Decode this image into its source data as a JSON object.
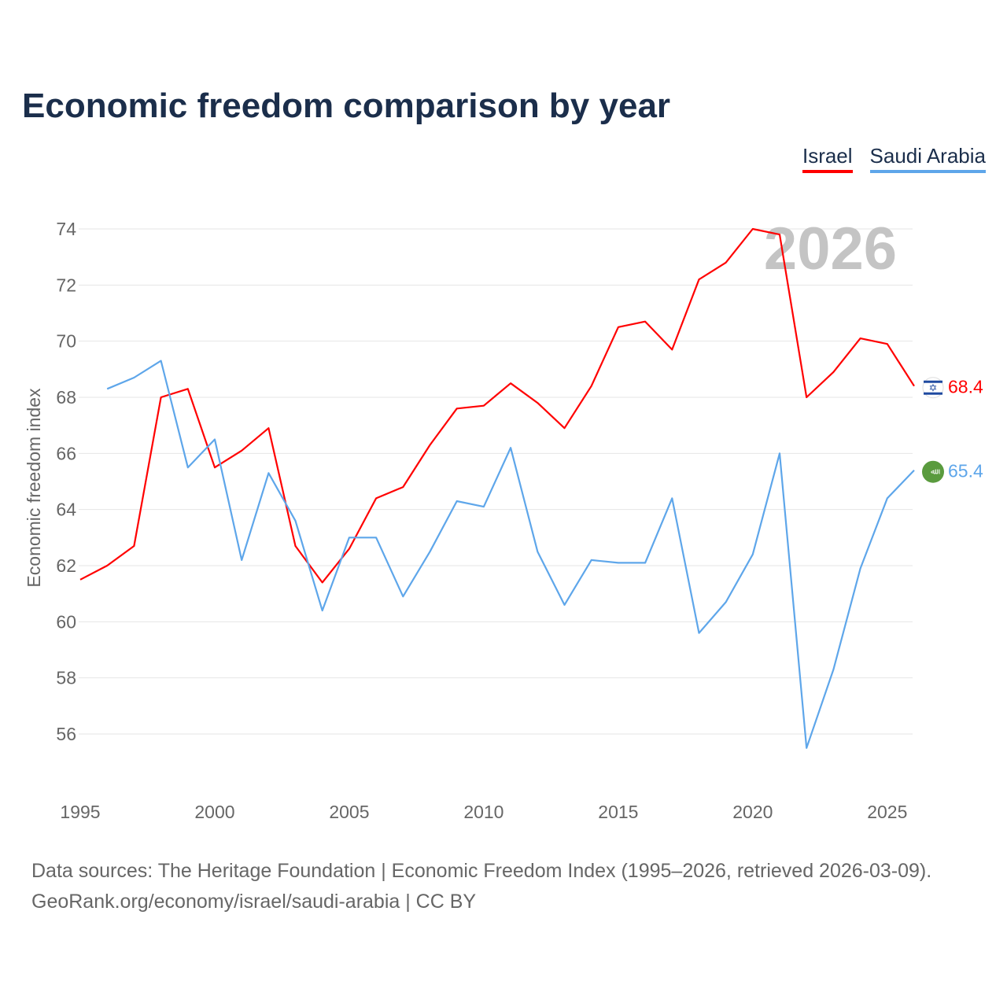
{
  "chart_data": {
    "type": "line",
    "title": "Economic freedom comparison by year",
    "ylabel": "Economic freedom index",
    "xlabel": "",
    "watermark_year": "2026",
    "yticks": [
      56,
      58,
      60,
      62,
      64,
      66,
      68,
      70,
      72,
      74
    ],
    "xticks": [
      1995,
      2000,
      2005,
      2010,
      2015,
      2020,
      2025
    ],
    "xlim": [
      1995,
      2026
    ],
    "ylim": [
      56,
      74
    ],
    "grid": true,
    "legend_position": "top-right",
    "x": [
      1995,
      1996,
      1997,
      1998,
      1999,
      2000,
      2001,
      2002,
      2003,
      2004,
      2005,
      2006,
      2007,
      2008,
      2009,
      2010,
      2011,
      2012,
      2013,
      2014,
      2015,
      2016,
      2017,
      2018,
      2019,
      2020,
      2021,
      2022,
      2023,
      2024,
      2025,
      2026
    ],
    "series": [
      {
        "name": "Israel",
        "color": "#ff0000",
        "end_label": "68.4",
        "values": [
          61.5,
          62.0,
          62.7,
          68.0,
          68.3,
          65.5,
          66.1,
          66.9,
          62.7,
          61.4,
          62.6,
          64.4,
          64.8,
          66.3,
          67.6,
          67.7,
          68.5,
          67.8,
          66.9,
          68.4,
          70.5,
          70.7,
          69.7,
          72.2,
          72.8,
          74.0,
          73.8,
          68.0,
          68.9,
          70.1,
          69.9,
          68.4
        ]
      },
      {
        "name": "Saudi Arabia",
        "color": "#5ea6ea",
        "end_label": "65.4",
        "values": [
          null,
          68.3,
          68.7,
          69.3,
          65.5,
          66.5,
          62.2,
          65.3,
          63.6,
          60.4,
          63.0,
          63.0,
          60.9,
          62.5,
          64.3,
          64.1,
          66.2,
          62.5,
          60.6,
          62.2,
          62.1,
          62.1,
          64.4,
          59.6,
          60.7,
          62.4,
          66.0,
          55.5,
          58.3,
          61.9,
          64.4,
          65.4
        ]
      }
    ]
  },
  "source": {
    "line1": "Data sources: The Heritage Foundation | Economic Freedom Index (1995–2026, retrieved 2026-03-09).",
    "line2": "GeoRank.org/economy/israel/saudi-arabia | CC BY"
  }
}
